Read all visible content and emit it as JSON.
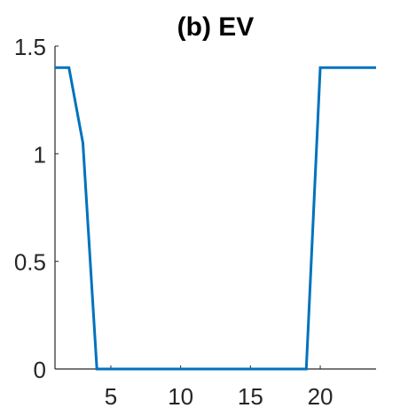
{
  "chart_data": {
    "type": "line",
    "title": "(b) EV",
    "xlabel": "",
    "ylabel": "",
    "xlim": [
      1,
      24
    ],
    "ylim": [
      0,
      1.5
    ],
    "grid": false,
    "x_ticks": [
      5,
      10,
      15,
      20
    ],
    "x_tick_labels": [
      "5",
      "10",
      "15",
      "20"
    ],
    "y_ticks": [
      0,
      0.5,
      1,
      1.5
    ],
    "y_tick_labels": [
      "0",
      "0.5",
      "1",
      "1.5"
    ],
    "series": [
      {
        "color": "#0072bd",
        "x": [
          1,
          2,
          3,
          4,
          5,
          6,
          7,
          8,
          9,
          10,
          11,
          12,
          13,
          14,
          15,
          16,
          17,
          18,
          19,
          20,
          21,
          22,
          23,
          24
        ],
        "values": [
          1.4,
          1.4,
          1.05,
          0,
          0,
          0,
          0,
          0,
          0,
          0,
          0,
          0,
          0,
          0,
          0,
          0,
          0,
          0,
          0,
          1.4,
          1.4,
          1.4,
          1.4,
          1.4
        ]
      }
    ]
  }
}
